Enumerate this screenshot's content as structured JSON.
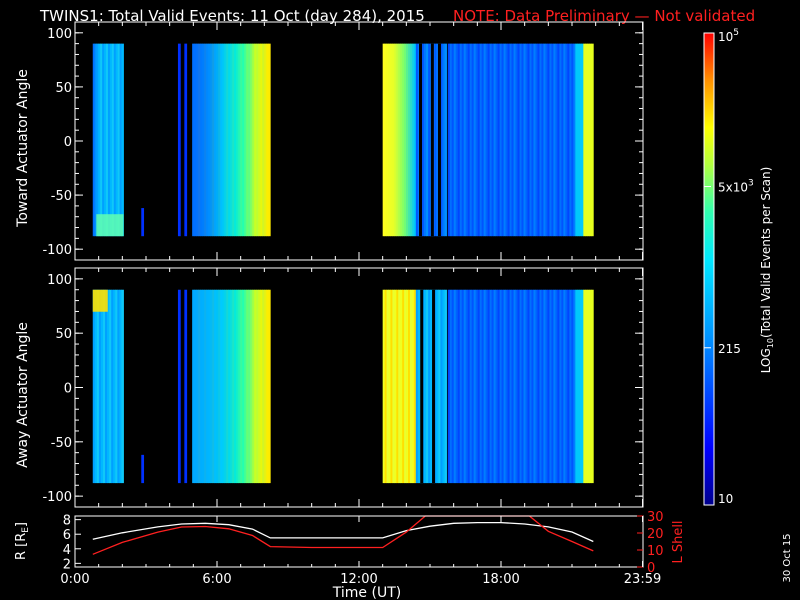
{
  "title": {
    "main": "TWINS1: Total Valid Events: 11 Oct (day 284), 2015",
    "note": "NOTE: Data Preliminary — Not validated"
  },
  "stamp": "30 Oct 15",
  "colorbar": {
    "label_main": "LOG",
    "label_sub": "10",
    "label_rest": "(Total Valid Events per Scan)",
    "ticks": [
      {
        "text": "10",
        "value": 10
      },
      {
        "text": "215",
        "value": 215
      },
      {
        "text": "5x10",
        "sup": "3",
        "value": 5000
      },
      {
        "text": "10",
        "sup": "5",
        "value": 100000
      }
    ],
    "range": [
      10,
      100000
    ],
    "scale": "log"
  },
  "colors": {
    "background": "#000000",
    "frame": "#ffffff",
    "note": "#ff2020",
    "r_curve": "#ffffff",
    "lshell_curve": "#ff2020"
  },
  "chart_data": [
    {
      "type": "heatmap",
      "ylabel": "Toward Actuator Angle",
      "xlim": [
        0,
        24
      ],
      "ylim": [
        -110,
        110
      ],
      "yticks": [
        "100",
        "50",
        "0",
        "-50",
        "-100"
      ],
      "ytick_values": [
        100,
        50,
        0,
        -50,
        -100
      ],
      "angle_range": [
        -88,
        90
      ],
      "segments": [
        {
          "t0": 0.75,
          "t1": 0.9,
          "level": "mid-low"
        },
        {
          "t0": 0.9,
          "t1": 2.05,
          "level": "mid",
          "corner_high_bottom": true
        },
        {
          "t0": 2.8,
          "t1": 2.9,
          "level": "low",
          "angle_range": [
            -88,
            -62
          ]
        },
        {
          "t0": 4.35,
          "t1": 4.45,
          "level": "low"
        },
        {
          "t0": 4.62,
          "t1": 4.72,
          "level": "low"
        },
        {
          "t0": 4.95,
          "t1": 8.25,
          "level": "rising",
          "from": "low",
          "to": "high"
        },
        {
          "t0": 13.0,
          "t1": 14.4,
          "level": "high-falling"
        },
        {
          "t0": 14.4,
          "t1": 15.7,
          "level": "low-mid",
          "gaps": [
            14.6,
            15.1,
            15.4
          ]
        },
        {
          "t0": 15.75,
          "t1": 21.9,
          "level": "low-rising",
          "edge_high": true
        }
      ]
    },
    {
      "type": "heatmap",
      "ylabel": "Away Actuator Angle",
      "xlim": [
        0,
        24
      ],
      "ylim": [
        -110,
        110
      ],
      "yticks": [
        "100",
        "50",
        "0",
        "-50",
        "-100"
      ],
      "ytick_values": [
        100,
        50,
        0,
        -50,
        -100
      ],
      "angle_range": [
        -88,
        90
      ],
      "segments": [
        {
          "t0": 0.75,
          "t1": 2.05,
          "level": "mid",
          "corner_high_top": true
        },
        {
          "t0": 2.8,
          "t1": 2.9,
          "level": "low",
          "angle_range": [
            -88,
            -62
          ]
        },
        {
          "t0": 4.35,
          "t1": 4.45,
          "level": "low"
        },
        {
          "t0": 4.62,
          "t1": 4.72,
          "level": "low"
        },
        {
          "t0": 4.95,
          "t1": 8.25,
          "level": "rising",
          "from": "mid",
          "to": "high"
        },
        {
          "t0": 13.0,
          "t1": 14.4,
          "level": "high"
        },
        {
          "t0": 14.4,
          "t1": 15.7,
          "level": "mid",
          "gaps": [
            14.65,
            15.15
          ]
        },
        {
          "t0": 15.75,
          "t1": 21.9,
          "level": "low-rising",
          "edge_high": true
        }
      ]
    },
    {
      "type": "line",
      "xlabel": "Time (UT)",
      "xlim": [
        0,
        24
      ],
      "xticks": [
        "0:00",
        "6:00",
        "12:00",
        "18:00",
        "23:59"
      ],
      "xtick_values": [
        0,
        6,
        12,
        18,
        23.98
      ],
      "ylabel_left": "R [R",
      "ylabel_left_sub": "E",
      "ylabel_left_end": "]",
      "ylim_left": [
        1.5,
        8.5
      ],
      "yticks_left": [
        "2",
        "4",
        "6",
        "8"
      ],
      "ytick_values_left": [
        2,
        4,
        6,
        8
      ],
      "ylabel_right": "L Shell",
      "ylim_right": [
        0,
        30
      ],
      "yticks_right": [
        "0",
        "10",
        "20",
        "30"
      ],
      "ytick_values_right": [
        0,
        10,
        20,
        30
      ],
      "series": [
        {
          "axis": "left",
          "x": [
            0.75,
            2.0,
            3.5,
            4.5,
            5.5,
            6.5,
            7.5,
            8.25,
            10,
            12,
            13.0,
            14.0,
            15.0,
            16.0,
            17.0,
            18.0,
            19.0,
            20.0,
            21.0,
            21.9
          ],
          "y": [
            5.3,
            6.2,
            7.0,
            7.4,
            7.5,
            7.3,
            6.7,
            5.5,
            5.5,
            5.5,
            5.5,
            6.5,
            7.1,
            7.5,
            7.6,
            7.6,
            7.4,
            7.0,
            6.3,
            5.0
          ]
        },
        {
          "axis": "right",
          "x": [
            0.75,
            2.0,
            3.5,
            4.5,
            5.5,
            6.5,
            7.5,
            8.25,
            10,
            12,
            13.0,
            14.0,
            14.8,
            19.2,
            20.0,
            21.0,
            21.9
          ],
          "y": [
            7.5,
            14.5,
            20.5,
            23.5,
            23.8,
            22.5,
            18.5,
            12,
            11.5,
            11.5,
            11.5,
            20.5,
            30,
            30,
            21,
            15,
            9.5
          ]
        }
      ]
    }
  ]
}
